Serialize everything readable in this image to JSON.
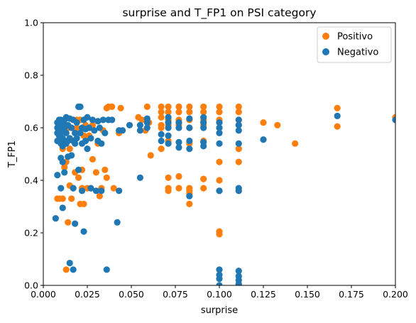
{
  "chart_data": {
    "type": "scatter",
    "title": "surprise and T_FP1 on PSI category",
    "xlabel": "surprise",
    "ylabel": "T_FP1",
    "xlim": [
      0.0,
      0.2
    ],
    "ylim": [
      0.0,
      1.0
    ],
    "x_ticks": [
      "0.000",
      "0.025",
      "0.050",
      "0.075",
      "0.100",
      "0.125",
      "0.150",
      "0.175",
      "0.200"
    ],
    "y_ticks": [
      "0.0",
      "0.2",
      "0.4",
      "0.6",
      "0.8",
      "1.0"
    ],
    "grid": false,
    "legend_position": "top-right",
    "series": [
      {
        "name": "Positivo",
        "color": "#ff7f0e",
        "points": [
          [
            0.008,
            0.33
          ],
          [
            0.009,
            0.33
          ],
          [
            0.01,
            0.56
          ],
          [
            0.011,
            0.33
          ],
          [
            0.011,
            0.52
          ],
          [
            0.012,
            0.45
          ],
          [
            0.013,
            0.06
          ],
          [
            0.013,
            0.47
          ],
          [
            0.014,
            0.24
          ],
          [
            0.014,
            0.6
          ],
          [
            0.015,
            0.38
          ],
          [
            0.015,
            0.52
          ],
          [
            0.016,
            0.33
          ],
          [
            0.017,
            0.37
          ],
          [
            0.018,
            0.43
          ],
          [
            0.019,
            0.6
          ],
          [
            0.019,
            0.63
          ],
          [
            0.02,
            0.41
          ],
          [
            0.021,
            0.31
          ],
          [
            0.021,
            0.63
          ],
          [
            0.022,
            0.37
          ],
          [
            0.022,
            0.44
          ],
          [
            0.023,
            0.31
          ],
          [
            0.023,
            0.57
          ],
          [
            0.024,
            0.61
          ],
          [
            0.025,
            0.37
          ],
          [
            0.026,
            0.57
          ],
          [
            0.027,
            0.6
          ],
          [
            0.028,
            0.48
          ],
          [
            0.028,
            0.61
          ],
          [
            0.03,
            0.43
          ],
          [
            0.031,
            0.54
          ],
          [
            0.032,
            0.34
          ],
          [
            0.033,
            0.37
          ],
          [
            0.034,
            0.59
          ],
          [
            0.035,
            0.44
          ],
          [
            0.036,
            0.41
          ],
          [
            0.036,
            0.675
          ],
          [
            0.037,
            0.68
          ],
          [
            0.039,
            0.68
          ],
          [
            0.04,
            0.37
          ],
          [
            0.043,
            0.58
          ],
          [
            0.044,
            0.675
          ],
          [
            0.054,
            0.64
          ],
          [
            0.056,
            0.63
          ],
          [
            0.058,
            0.59
          ],
          [
            0.059,
            0.68
          ],
          [
            0.06,
            0.62
          ],
          [
            0.061,
            0.495
          ],
          [
            0.067,
            0.68
          ],
          [
            0.067,
            0.66
          ],
          [
            0.067,
            0.64
          ],
          [
            0.067,
            0.61
          ],
          [
            0.067,
            0.6
          ],
          [
            0.067,
            0.52
          ],
          [
            0.071,
            0.68
          ],
          [
            0.071,
            0.66
          ],
          [
            0.071,
            0.63
          ],
          [
            0.071,
            0.61
          ],
          [
            0.071,
            0.55
          ],
          [
            0.071,
            0.41
          ],
          [
            0.071,
            0.37
          ],
          [
            0.071,
            0.36
          ],
          [
            0.077,
            0.68
          ],
          [
            0.077,
            0.66
          ],
          [
            0.077,
            0.63
          ],
          [
            0.077,
            0.61
          ],
          [
            0.077,
            0.415
          ],
          [
            0.077,
            0.37
          ],
          [
            0.083,
            0.68
          ],
          [
            0.083,
            0.66
          ],
          [
            0.083,
            0.63
          ],
          [
            0.083,
            0.6
          ],
          [
            0.083,
            0.54
          ],
          [
            0.083,
            0.37
          ],
          [
            0.083,
            0.36
          ],
          [
            0.083,
            0.35
          ],
          [
            0.083,
            0.31
          ],
          [
            0.091,
            0.68
          ],
          [
            0.091,
            0.66
          ],
          [
            0.091,
            0.63
          ],
          [
            0.091,
            0.61
          ],
          [
            0.091,
            0.55
          ],
          [
            0.091,
            0.405
          ],
          [
            0.091,
            0.37
          ],
          [
            0.1,
            0.68
          ],
          [
            0.1,
            0.66
          ],
          [
            0.1,
            0.63
          ],
          [
            0.1,
            0.6
          ],
          [
            0.1,
            0.47
          ],
          [
            0.1,
            0.4
          ],
          [
            0.1,
            0.36
          ],
          [
            0.1,
            0.205
          ],
          [
            0.1,
            0.195
          ],
          [
            0.111,
            0.68
          ],
          [
            0.111,
            0.66
          ],
          [
            0.111,
            0.63
          ],
          [
            0.111,
            0.61
          ],
          [
            0.111,
            0.52
          ],
          [
            0.111,
            0.47
          ],
          [
            0.111,
            0.36
          ],
          [
            0.125,
            0.62
          ],
          [
            0.133,
            0.61
          ],
          [
            0.143,
            0.54
          ],
          [
            0.167,
            0.675
          ],
          [
            0.167,
            0.605
          ],
          [
            0.2,
            0.64
          ]
        ]
      },
      {
        "name": "Negativo",
        "color": "#1f77b4",
        "points": [
          [
            0.007,
            0.255
          ],
          [
            0.008,
            0.42
          ],
          [
            0.008,
            0.55
          ],
          [
            0.008,
            0.58
          ],
          [
            0.008,
            0.6
          ],
          [
            0.008,
            0.62
          ],
          [
            0.009,
            0.57
          ],
          [
            0.009,
            0.6
          ],
          [
            0.009,
            0.63
          ],
          [
            0.01,
            0.37
          ],
          [
            0.01,
            0.485
          ],
          [
            0.01,
            0.54
          ],
          [
            0.01,
            0.58
          ],
          [
            0.01,
            0.61
          ],
          [
            0.01,
            0.63
          ],
          [
            0.011,
            0.295
          ],
          [
            0.011,
            0.47
          ],
          [
            0.011,
            0.53
          ],
          [
            0.011,
            0.56
          ],
          [
            0.011,
            0.59
          ],
          [
            0.011,
            0.62
          ],
          [
            0.012,
            0.43
          ],
          [
            0.012,
            0.55
          ],
          [
            0.012,
            0.6
          ],
          [
            0.012,
            0.63
          ],
          [
            0.013,
            0.54
          ],
          [
            0.013,
            0.58
          ],
          [
            0.013,
            0.64
          ],
          [
            0.014,
            0.49
          ],
          [
            0.014,
            0.55
          ],
          [
            0.014,
            0.61
          ],
          [
            0.015,
            0.085
          ],
          [
            0.015,
            0.56
          ],
          [
            0.015,
            0.635
          ],
          [
            0.016,
            0.495
          ],
          [
            0.016,
            0.6
          ],
          [
            0.017,
            0.06
          ],
          [
            0.017,
            0.37
          ],
          [
            0.017,
            0.55
          ],
          [
            0.017,
            0.63
          ],
          [
            0.018,
            0.235
          ],
          [
            0.018,
            0.54
          ],
          [
            0.018,
            0.58
          ],
          [
            0.019,
            0.56
          ],
          [
            0.019,
            0.62
          ],
          [
            0.02,
            0.44
          ],
          [
            0.02,
            0.68
          ],
          [
            0.021,
            0.58
          ],
          [
            0.021,
            0.68
          ],
          [
            0.022,
            0.36
          ],
          [
            0.022,
            0.54
          ],
          [
            0.022,
            0.6
          ],
          [
            0.023,
            0.205
          ],
          [
            0.023,
            0.63
          ],
          [
            0.024,
            0.55
          ],
          [
            0.024,
            0.595
          ],
          [
            0.025,
            0.52
          ],
          [
            0.025,
            0.64
          ],
          [
            0.026,
            0.6
          ],
          [
            0.027,
            0.37
          ],
          [
            0.027,
            0.56
          ],
          [
            0.028,
            0.63
          ],
          [
            0.029,
            0.59
          ],
          [
            0.03,
            0.36
          ],
          [
            0.031,
            0.55
          ],
          [
            0.031,
            0.625
          ],
          [
            0.032,
            0.6
          ],
          [
            0.033,
            0.36
          ],
          [
            0.033,
            0.54
          ],
          [
            0.034,
            0.63
          ],
          [
            0.035,
            0.58
          ],
          [
            0.036,
            0.06
          ],
          [
            0.037,
            0.63
          ],
          [
            0.039,
            0.63
          ],
          [
            0.042,
            0.24
          ],
          [
            0.043,
            0.36
          ],
          [
            0.043,
            0.59
          ],
          [
            0.045,
            0.59
          ],
          [
            0.049,
            0.61
          ],
          [
            0.055,
            0.41
          ],
          [
            0.055,
            0.59
          ],
          [
            0.055,
            0.61
          ],
          [
            0.059,
            0.6
          ],
          [
            0.059,
            0.62
          ],
          [
            0.059,
            0.635
          ],
          [
            0.067,
            0.55
          ],
          [
            0.067,
            0.575
          ],
          [
            0.071,
            0.54
          ],
          [
            0.071,
            0.57
          ],
          [
            0.071,
            0.6
          ],
          [
            0.071,
            0.62
          ],
          [
            0.071,
            0.64
          ],
          [
            0.077,
            0.525
          ],
          [
            0.077,
            0.545
          ],
          [
            0.077,
            0.6
          ],
          [
            0.077,
            0.62
          ],
          [
            0.083,
            0.34
          ],
          [
            0.083,
            0.52
          ],
          [
            0.083,
            0.55
          ],
          [
            0.083,
            0.6
          ],
          [
            0.083,
            0.635
          ],
          [
            0.091,
            0.53
          ],
          [
            0.091,
            0.545
          ],
          [
            0.091,
            0.6
          ],
          [
            0.091,
            0.62
          ],
          [
            0.091,
            0.64
          ],
          [
            0.1,
            0.0
          ],
          [
            0.1,
            0.025
          ],
          [
            0.1,
            0.04
          ],
          [
            0.1,
            0.06
          ],
          [
            0.1,
            0.36
          ],
          [
            0.1,
            0.54
          ],
          [
            0.1,
            0.58
          ],
          [
            0.1,
            0.6
          ],
          [
            0.1,
            0.62
          ],
          [
            0.111,
            0.005
          ],
          [
            0.111,
            0.02
          ],
          [
            0.111,
            0.035
          ],
          [
            0.111,
            0.055
          ],
          [
            0.111,
            0.36
          ],
          [
            0.111,
            0.37
          ],
          [
            0.111,
            0.54
          ],
          [
            0.111,
            0.59
          ],
          [
            0.111,
            0.61
          ],
          [
            0.111,
            0.63
          ],
          [
            0.125,
            0.555
          ],
          [
            0.167,
            0.645
          ],
          [
            0.2,
            0.63
          ]
        ]
      }
    ]
  }
}
